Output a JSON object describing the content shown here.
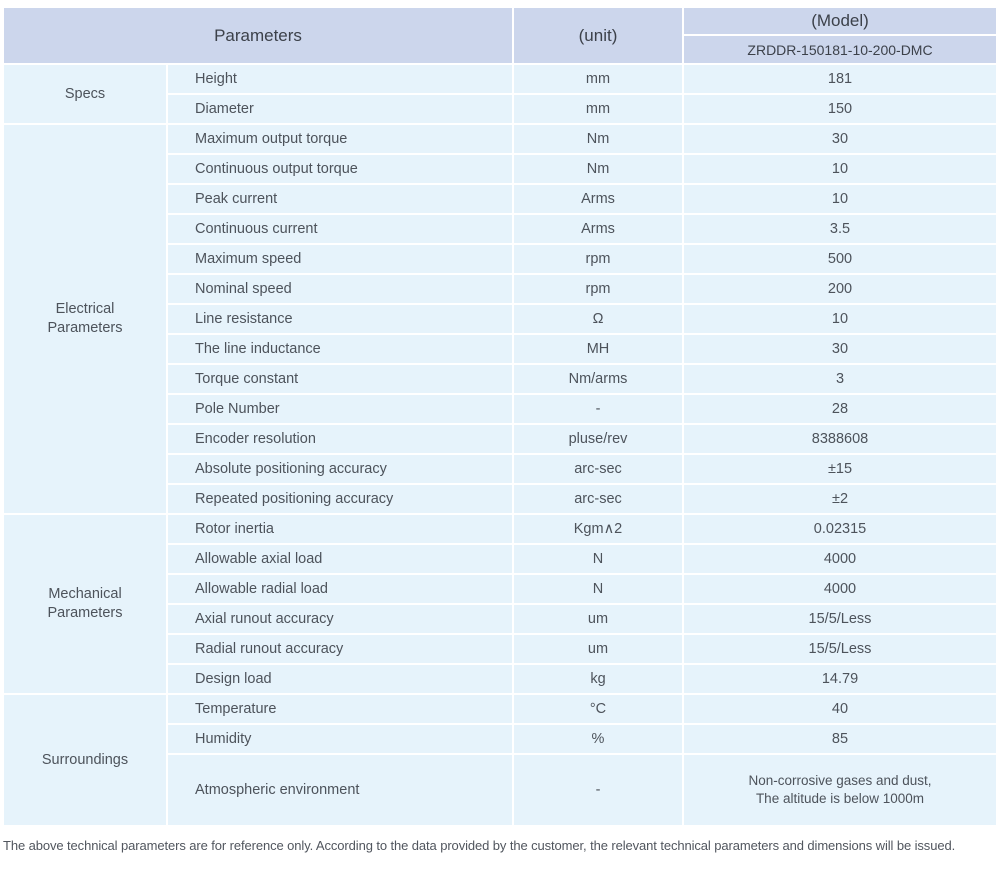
{
  "table": {
    "header": {
      "parameters_label": "Parameters",
      "unit_label": "(unit)",
      "model_label": "(Model)",
      "model_value": "ZRDDR-150181-10-200-DMC"
    },
    "sections": [
      {
        "name": "Specs",
        "rows": [
          {
            "name": "Height",
            "unit": "mm",
            "value": "181"
          },
          {
            "name": "Diameter",
            "unit": "mm",
            "value": "150"
          }
        ]
      },
      {
        "name": "Electrical Parameters",
        "rows": [
          {
            "name": "Maximum output torque",
            "unit": "Nm",
            "value": "30"
          },
          {
            "name": "Continuous output torque",
            "unit": "Nm",
            "value": "10"
          },
          {
            "name": "Peak current",
            "unit": "Arms",
            "value": "10"
          },
          {
            "name": "Continuous current",
            "unit": "Arms",
            "value": "3.5"
          },
          {
            "name": "Maximum speed",
            "unit": "rpm",
            "value": "500"
          },
          {
            "name": "Nominal speed",
            "unit": "rpm",
            "value": "200"
          },
          {
            "name": "Line resistance",
            "unit": "Ω",
            "value": "10"
          },
          {
            "name": "The line inductance",
            "unit": "MH",
            "value": "30"
          },
          {
            "name": "Torque constant",
            "unit": "Nm/arms",
            "value": "3"
          },
          {
            "name": "Pole Number",
            "unit": "-",
            "value": "28"
          },
          {
            "name": "Encoder resolution",
            "unit": "pluse/rev",
            "value": "8388608"
          },
          {
            "name": "Absolute positioning accuracy",
            "unit": "arc-sec",
            "value": "±15"
          },
          {
            "name": "Repeated positioning accuracy",
            "unit": "arc-sec",
            "value": "±2"
          }
        ]
      },
      {
        "name": "Mechanical Parameters",
        "rows": [
          {
            "name": "Rotor inertia",
            "unit": "Kgm∧2",
            "value": "0.02315"
          },
          {
            "name": "Allowable axial load",
            "unit": "N",
            "value": "4000"
          },
          {
            "name": "Allowable radial load",
            "unit": "N",
            "value": "4000"
          },
          {
            "name": "Axial runout accuracy",
            "unit": "um",
            "value": "15/5/Less"
          },
          {
            "name": "Radial runout accuracy",
            "unit": "um",
            "value": "15/5/Less"
          },
          {
            "name": "Design load",
            "unit": "kg",
            "value": "14.79"
          }
        ]
      },
      {
        "name": "Surroundings",
        "rows": [
          {
            "name": "Temperature",
            "unit": "°C",
            "value": "40"
          },
          {
            "name": "Humidity",
            "unit": "%",
            "value": "85"
          },
          {
            "name": "Atmospheric environment",
            "unit": "-",
            "value": [
              "Non-corrosive gases and dust,",
              "The altitude is below 1000m"
            ]
          }
        ]
      }
    ]
  },
  "footer_note": "The above technical parameters are for reference only. According to the data provided by the customer, the relevant technical parameters and dimensions will be issued.",
  "colors": {
    "header_bg": "#ccd6ec",
    "cell_bg": "#e6f3fb",
    "grid_gap": "#ffffff",
    "header_text": "#3c414a",
    "body_text": "#4d535b"
  }
}
